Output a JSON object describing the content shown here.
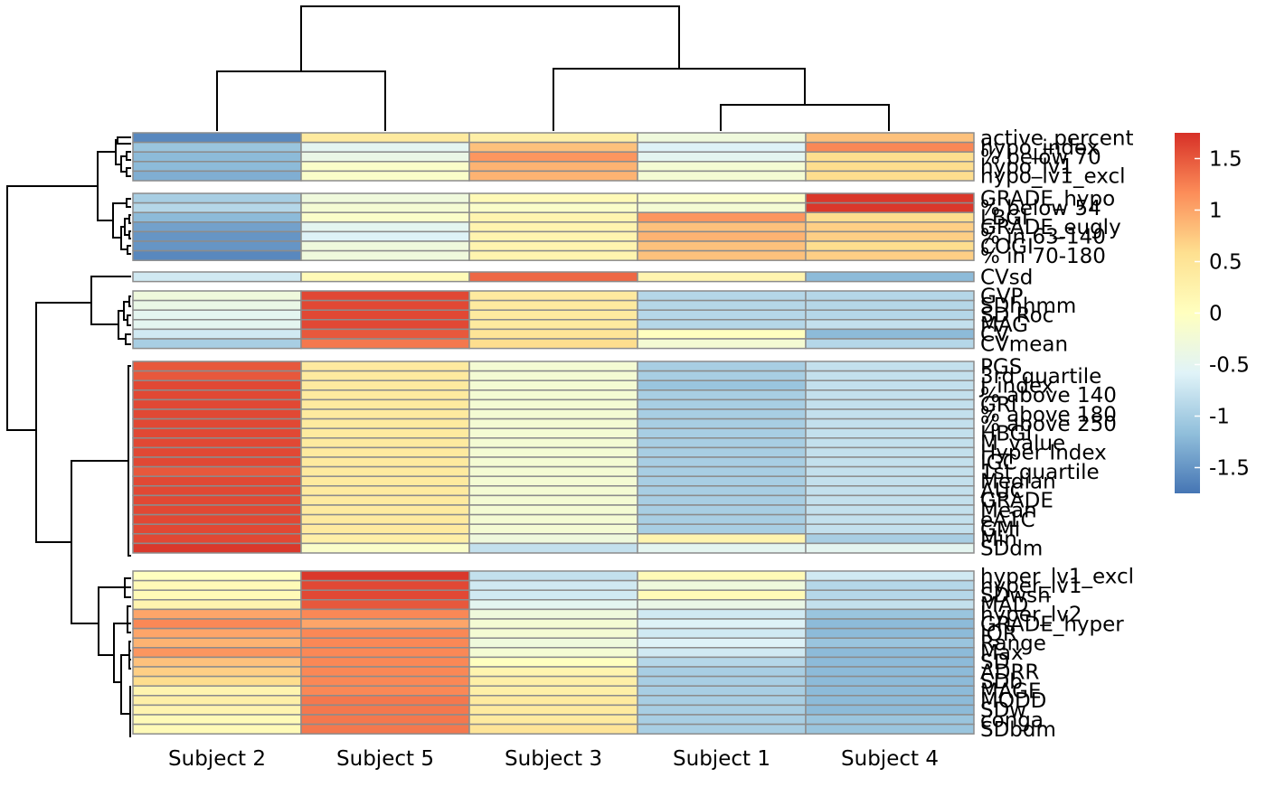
{
  "chart_data": {
    "type": "heatmap",
    "title": "",
    "columns": [
      "Subject 2",
      "Subject 5",
      "Subject 3",
      "Subject 1",
      "Subject 4"
    ],
    "row_groups": [
      {
        "rows": [
          {
            "name": "active_percent",
            "values": [
              -1.6,
              0.4,
              0.3,
              -0.3,
              0.8
            ]
          },
          {
            "name": "hypo_index",
            "values": [
              -1.1,
              -0.5,
              0.8,
              -0.6,
              1.2
            ]
          },
          {
            "name": "% below 70",
            "values": [
              -1.2,
              -0.4,
              1.1,
              -0.5,
              0.6
            ]
          },
          {
            "name": "hypo_lv1",
            "values": [
              -1.2,
              -0.1,
              0.9,
              -0.2,
              0.6
            ]
          },
          {
            "name": "hypo_lv1_excl",
            "values": [
              -1.3,
              -0.1,
              0.9,
              -0.2,
              0.6
            ]
          }
        ]
      },
      {
        "rows": [
          {
            "name": "GRADE_hypo",
            "values": [
              -1.0,
              -0.3,
              0.1,
              -0.1,
              1.7
            ]
          },
          {
            "name": "% below 54",
            "values": [
              -0.9,
              -0.2,
              -0.1,
              -0.2,
              1.7
            ]
          },
          {
            "name": "LBGI",
            "values": [
              -1.2,
              -0.1,
              0.2,
              1.1,
              0.6
            ]
          },
          {
            "name": "GRADE_eugly",
            "values": [
              -1.4,
              -0.5,
              0.2,
              0.8,
              0.7
            ]
          },
          {
            "name": "% in 63-140",
            "values": [
              -1.5,
              -0.6,
              0.2,
              0.9,
              0.7
            ]
          },
          {
            "name": "COGI",
            "values": [
              -1.5,
              -0.3,
              0.2,
              0.8,
              0.6
            ]
          },
          {
            "name": "% in 70-180",
            "values": [
              -1.6,
              -0.3,
              0.2,
              0.8,
              0.7
            ]
          }
        ]
      },
      {
        "rows": [
          {
            "name": "CVsd",
            "values": [
              -0.7,
              0.1,
              1.4,
              0.2,
              -1.2
            ]
          }
        ]
      },
      {
        "rows": [
          {
            "name": "GVP",
            "values": [
              -0.3,
              1.6,
              0.4,
              -0.9,
              -0.9
            ]
          },
          {
            "name": "SDhhmm",
            "values": [
              -0.4,
              1.6,
              0.4,
              -0.9,
              -0.9
            ]
          },
          {
            "name": "SD Roc",
            "values": [
              -0.5,
              1.6,
              0.4,
              -0.9,
              -0.9
            ]
          },
          {
            "name": "MAG",
            "values": [
              -0.5,
              1.6,
              0.4,
              -0.9,
              -0.8
            ]
          },
          {
            "name": "CV",
            "values": [
              -0.7,
              1.5,
              0.5,
              0.0,
              -1.2
            ]
          },
          {
            "name": "CVmean",
            "values": [
              -1.0,
              1.3,
              0.6,
              -0.2,
              -0.9
            ]
          }
        ]
      },
      {
        "rows": [
          {
            "name": "PGS",
            "values": [
              1.5,
              0.4,
              -0.2,
              -1.0,
              -0.8
            ]
          },
          {
            "name": "3rd quartile",
            "values": [
              1.5,
              0.4,
              -0.2,
              -1.0,
              -0.8
            ]
          },
          {
            "name": "J_index",
            "values": [
              1.6,
              0.4,
              -0.2,
              -1.1,
              -0.8
            ]
          },
          {
            "name": "% above 140",
            "values": [
              1.6,
              0.4,
              -0.2,
              -1.0,
              -0.8
            ]
          },
          {
            "name": "GRI",
            "values": [
              1.6,
              0.4,
              -0.2,
              -1.0,
              -0.8
            ]
          },
          {
            "name": "% above 180",
            "values": [
              1.6,
              0.4,
              -0.2,
              -1.0,
              -0.8
            ]
          },
          {
            "name": "% above 250",
            "values": [
              1.6,
              0.4,
              -0.2,
              -1.0,
              -0.8
            ]
          },
          {
            "name": "HBGI",
            "values": [
              1.6,
              0.4,
              -0.2,
              -1.0,
              -0.8
            ]
          },
          {
            "name": "M_value",
            "values": [
              1.6,
              0.4,
              -0.2,
              -1.0,
              -0.8
            ]
          },
          {
            "name": "Hyper Index",
            "values": [
              1.6,
              0.4,
              -0.2,
              -1.0,
              -0.8
            ]
          },
          {
            "name": "IGC",
            "values": [
              1.6,
              0.4,
              -0.2,
              -1.0,
              -0.8
            ]
          },
          {
            "name": "1st quartile",
            "values": [
              1.5,
              0.4,
              -0.2,
              -1.0,
              -0.8
            ]
          },
          {
            "name": "Median",
            "values": [
              1.6,
              0.4,
              -0.2,
              -1.0,
              -0.8
            ]
          },
          {
            "name": "AUC",
            "values": [
              1.6,
              0.4,
              -0.2,
              -1.0,
              -0.8
            ]
          },
          {
            "name": "GRADE",
            "values": [
              1.6,
              0.4,
              -0.2,
              -1.0,
              -0.8
            ]
          },
          {
            "name": "Mean",
            "values": [
              1.6,
              0.4,
              -0.2,
              -1.0,
              -0.8
            ]
          },
          {
            "name": "eA1C",
            "values": [
              1.6,
              0.4,
              -0.2,
              -1.0,
              -0.8
            ]
          },
          {
            "name": "GMI",
            "values": [
              1.6,
              0.4,
              -0.2,
              -1.0,
              -0.8
            ]
          },
          {
            "name": "Min",
            "values": [
              1.6,
              0.3,
              -0.3,
              0.2,
              -1.0
            ]
          },
          {
            "name": "SDdm",
            "values": [
              1.7,
              -0.1,
              -0.8,
              -0.5,
              -0.5
            ]
          }
        ]
      },
      {
        "rows": [
          {
            "name": "hyper_lv1_excl",
            "values": [
              0.0,
              1.7,
              -0.8,
              0.1,
              -0.7
            ]
          },
          {
            "name": "hyper_lv1",
            "values": [
              0.1,
              1.6,
              -0.7,
              -0.3,
              -0.9
            ]
          },
          {
            "name": "SDwsh",
            "values": [
              0.1,
              1.6,
              -0.7,
              0.1,
              -0.9
            ]
          },
          {
            "name": "MAD",
            "values": [
              0.2,
              1.5,
              -0.5,
              -0.4,
              -0.8
            ]
          },
          {
            "name": "hyper_lv2",
            "values": [
              1.0,
              1.2,
              -0.3,
              -0.7,
              -1.1
            ]
          },
          {
            "name": "GRADE_hyper",
            "values": [
              1.2,
              1.0,
              -0.2,
              -0.6,
              -1.2
            ]
          },
          {
            "name": "IQR",
            "values": [
              1.0,
              1.2,
              -0.2,
              -0.7,
              -1.2
            ]
          },
          {
            "name": "Range",
            "values": [
              0.9,
              1.2,
              -0.3,
              -0.6,
              -1.1
            ]
          },
          {
            "name": "Max",
            "values": [
              1.1,
              1.2,
              -0.2,
              -0.7,
              -1.2
            ]
          },
          {
            "name": "SD",
            "values": [
              0.8,
              1.2,
              0.0,
              -0.9,
              -1.2
            ]
          },
          {
            "name": "ADRR",
            "values": [
              0.7,
              1.2,
              0.2,
              -1.0,
              -1.2
            ]
          },
          {
            "name": "SDb",
            "values": [
              0.6,
              1.2,
              0.3,
              -1.0,
              -1.2
            ]
          },
          {
            "name": "MAGE",
            "values": [
              0.2,
              1.2,
              0.3,
              -1.0,
              -1.2
            ]
          },
          {
            "name": "MODD",
            "values": [
              0.3,
              1.3,
              0.4,
              -1.0,
              -1.2
            ]
          },
          {
            "name": "SDw",
            "values": [
              0.2,
              1.3,
              0.4,
              -1.0,
              -1.2
            ]
          },
          {
            "name": "conga",
            "values": [
              0.1,
              1.3,
              0.4,
              -1.0,
              -1.1
            ]
          },
          {
            "name": "SDbdm",
            "values": [
              0.1,
              1.3,
              0.5,
              -1.0,
              -1.1
            ]
          }
        ]
      }
    ],
    "color_scale": {
      "min": -1.75,
      "max": 1.75,
      "stops": [
        "#4575b4",
        "#91bfdb",
        "#e0f3f8",
        "#ffffbf",
        "#fee090",
        "#fc8d59",
        "#d73027"
      ],
      "ticks": [
        -1.5,
        -1,
        -0.5,
        0,
        0.5,
        1,
        1.5
      ],
      "tick_labels": [
        "-1.5",
        "-1",
        "-0.5",
        "0",
        "0.5",
        "1",
        "1.5"
      ]
    },
    "legend_position": "right",
    "column_dendrogram": true,
    "row_dendrogram": true
  }
}
